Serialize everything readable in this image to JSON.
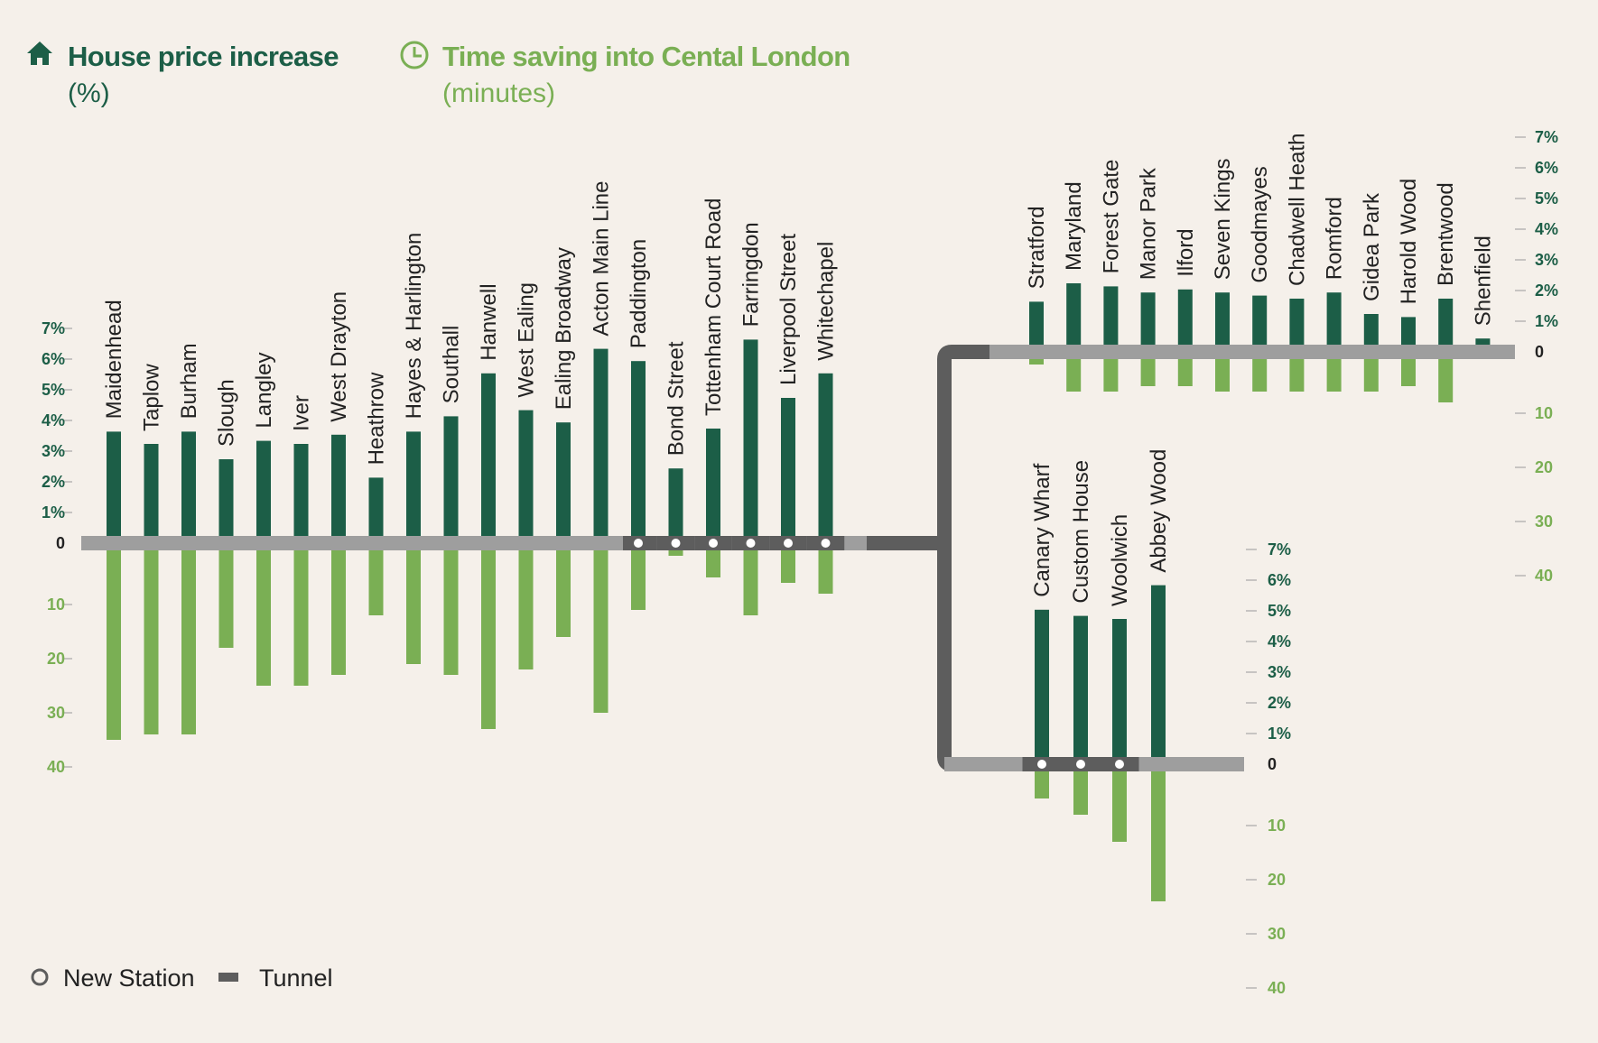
{
  "legend": {
    "price": {
      "title": "House price increase",
      "unit": "(%)",
      "color": "#1c5e47",
      "icon": "house-icon"
    },
    "time": {
      "title": "Time saving into Cental London",
      "unit": "(minutes)",
      "color": "#7aaf54",
      "icon": "clock-icon"
    }
  },
  "key": {
    "new_station": "New Station",
    "tunnel": "Tunnel"
  },
  "colors": {
    "price_bar": "#1c5e47",
    "time_bar": "#7aaf54",
    "line_surface": "#9e9e9e",
    "tunnel": "#5d5d5d",
    "station_dot": "#ffffff"
  },
  "chart_data": {
    "type": "bar",
    "series": [
      {
        "name": "House price increase",
        "unit": "%"
      },
      {
        "name": "Time saving into Cental London",
        "unit": "minutes"
      }
    ],
    "axes": {
      "price_ticks": [
        "7%",
        "6%",
        "5%",
        "4%",
        "3%",
        "2%",
        "1%",
        "0"
      ],
      "time_ticks": [
        "10",
        "20",
        "30",
        "40"
      ],
      "price_range": [
        0,
        7
      ],
      "time_range": [
        0,
        40
      ]
    },
    "branches": [
      {
        "name": "west",
        "stations": [
          {
            "name": "Maidenhead",
            "price": 3.4,
            "time": 35,
            "new": false,
            "tunnel": false
          },
          {
            "name": "Taplow",
            "price": 3.0,
            "time": 34,
            "new": false,
            "tunnel": false
          },
          {
            "name": "Burham",
            "price": 3.4,
            "time": 34,
            "new": false,
            "tunnel": false
          },
          {
            "name": "Slough",
            "price": 2.5,
            "time": 18,
            "new": false,
            "tunnel": false
          },
          {
            "name": "Langley",
            "price": 3.1,
            "time": 25,
            "new": false,
            "tunnel": false
          },
          {
            "name": "Iver",
            "price": 3.0,
            "time": 25,
            "new": false,
            "tunnel": false
          },
          {
            "name": "West Drayton",
            "price": 3.3,
            "time": 23,
            "new": false,
            "tunnel": false
          },
          {
            "name": "Heathrow",
            "price": 1.9,
            "time": 12,
            "new": false,
            "tunnel": false
          },
          {
            "name": "Hayes & Harlington",
            "price": 3.4,
            "time": 21,
            "new": false,
            "tunnel": false
          },
          {
            "name": "Southall",
            "price": 3.9,
            "time": 23,
            "new": false,
            "tunnel": false
          },
          {
            "name": "Hanwell",
            "price": 5.3,
            "time": 33,
            "new": false,
            "tunnel": false
          },
          {
            "name": "West Ealing",
            "price": 4.1,
            "time": 22,
            "new": false,
            "tunnel": false
          },
          {
            "name": "Ealing Broadway",
            "price": 3.7,
            "time": 16,
            "new": false,
            "tunnel": false
          },
          {
            "name": "Acton Main Line",
            "price": 6.1,
            "time": 30,
            "new": false,
            "tunnel": false
          },
          {
            "name": "Paddington",
            "price": 5.7,
            "time": 11,
            "new": true,
            "tunnel": true
          },
          {
            "name": "Bond Street",
            "price": 2.2,
            "time": 1,
            "new": true,
            "tunnel": true
          },
          {
            "name": "Tottenham Court Road",
            "price": 3.5,
            "time": 5,
            "new": true,
            "tunnel": true
          },
          {
            "name": "Farringdon",
            "price": 6.4,
            "time": 12,
            "new": true,
            "tunnel": true
          },
          {
            "name": "Liverpool Street",
            "price": 4.5,
            "time": 6,
            "new": true,
            "tunnel": true
          },
          {
            "name": "Whitechapel",
            "price": 5.3,
            "time": 8,
            "new": true,
            "tunnel": true
          }
        ]
      },
      {
        "name": "north-east",
        "stations": [
          {
            "name": "Stratford",
            "price": 1.4,
            "time": 1,
            "new": false,
            "tunnel": false
          },
          {
            "name": "Maryland",
            "price": 2.0,
            "time": 6,
            "new": false,
            "tunnel": false
          },
          {
            "name": "Forest Gate",
            "price": 1.9,
            "time": 6,
            "new": false,
            "tunnel": false
          },
          {
            "name": "Manor Park",
            "price": 1.7,
            "time": 5,
            "new": false,
            "tunnel": false
          },
          {
            "name": "Ilford",
            "price": 1.8,
            "time": 5,
            "new": false,
            "tunnel": false
          },
          {
            "name": "Seven Kings",
            "price": 1.7,
            "time": 6,
            "new": false,
            "tunnel": false
          },
          {
            "name": "Goodmayes",
            "price": 1.6,
            "time": 6,
            "new": false,
            "tunnel": false
          },
          {
            "name": "Chadwell Heath",
            "price": 1.5,
            "time": 6,
            "new": false,
            "tunnel": false
          },
          {
            "name": "Romford",
            "price": 1.7,
            "time": 6,
            "new": false,
            "tunnel": false
          },
          {
            "name": "Gidea Park",
            "price": 1.0,
            "time": 6,
            "new": false,
            "tunnel": false
          },
          {
            "name": "Harold Wood",
            "price": 0.9,
            "time": 5,
            "new": false,
            "tunnel": false
          },
          {
            "name": "Brentwood",
            "price": 1.5,
            "time": 8,
            "new": false,
            "tunnel": false
          },
          {
            "name": "Shenfield",
            "price": 0.2,
            "time": 0,
            "new": false,
            "tunnel": false
          }
        ]
      },
      {
        "name": "south-east",
        "stations": [
          {
            "name": "Canary Wharf",
            "price": 4.8,
            "time": 5,
            "new": true,
            "tunnel": true
          },
          {
            "name": "Custom House",
            "price": 4.6,
            "time": 8,
            "new": true,
            "tunnel": true
          },
          {
            "name": "Woolwich",
            "price": 4.5,
            "time": 13,
            "new": true,
            "tunnel": true
          },
          {
            "name": "Abbey Wood",
            "price": 5.6,
            "time": 24,
            "new": false,
            "tunnel": false
          }
        ]
      }
    ]
  }
}
